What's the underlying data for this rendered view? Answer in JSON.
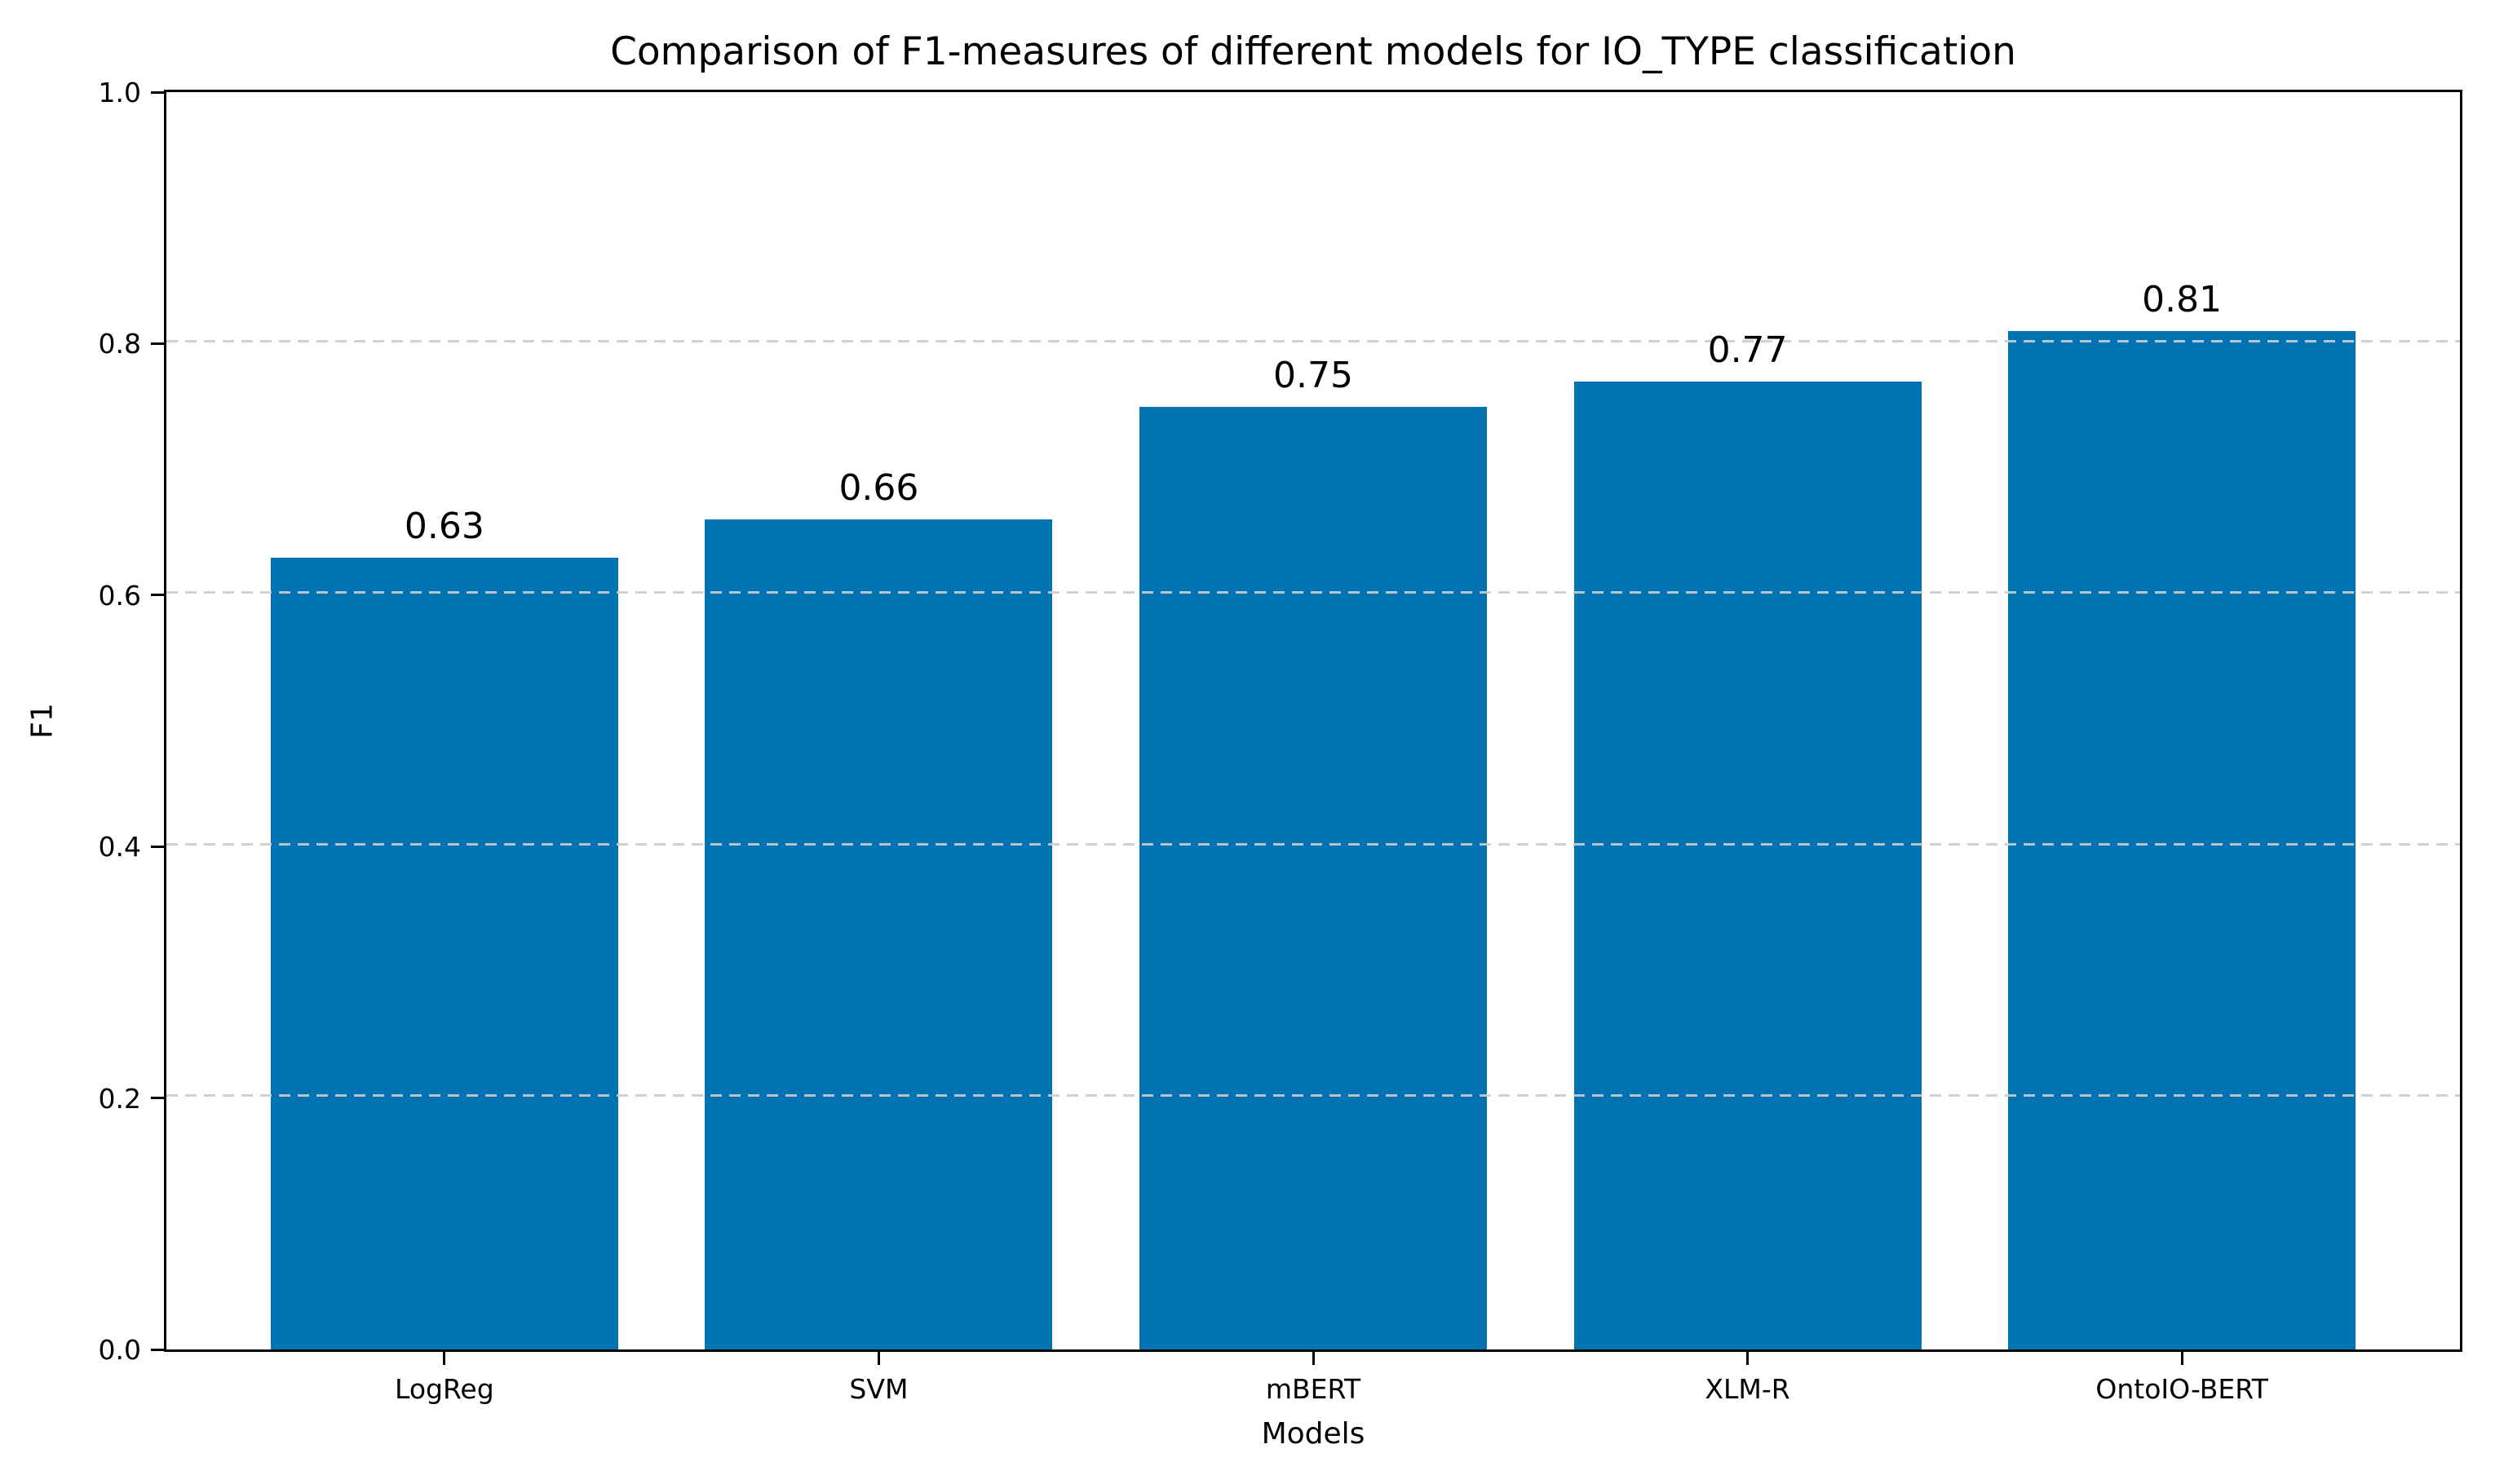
{
  "chart_data": {
    "type": "bar",
    "title": "Comparison of F1-measures of different models for IO_TYPE classification",
    "xlabel": "Models",
    "ylabel": "F1",
    "categories": [
      "LogReg",
      "SVM",
      "mBERT",
      "XLM-R",
      "OntoIO-BERT"
    ],
    "values": [
      0.63,
      0.66,
      0.75,
      0.77,
      0.81
    ],
    "bar_labels": [
      "0.63",
      "0.66",
      "0.75",
      "0.77",
      "0.81"
    ],
    "ylim": [
      0.0,
      1.0
    ],
    "yticks": [
      0.0,
      0.2,
      0.4,
      0.6,
      0.8,
      1.0
    ],
    "ytick_labels": [
      "0.0",
      "0.2",
      "0.4",
      "0.6",
      "0.8",
      "1.0"
    ],
    "bar_color": "#0173b2",
    "grid_color": "#cccccc",
    "grid_style": "dashed-horizontal-over-bars",
    "legend_position": "none",
    "background_color": "#ffffff",
    "text_color": "#000000"
  }
}
